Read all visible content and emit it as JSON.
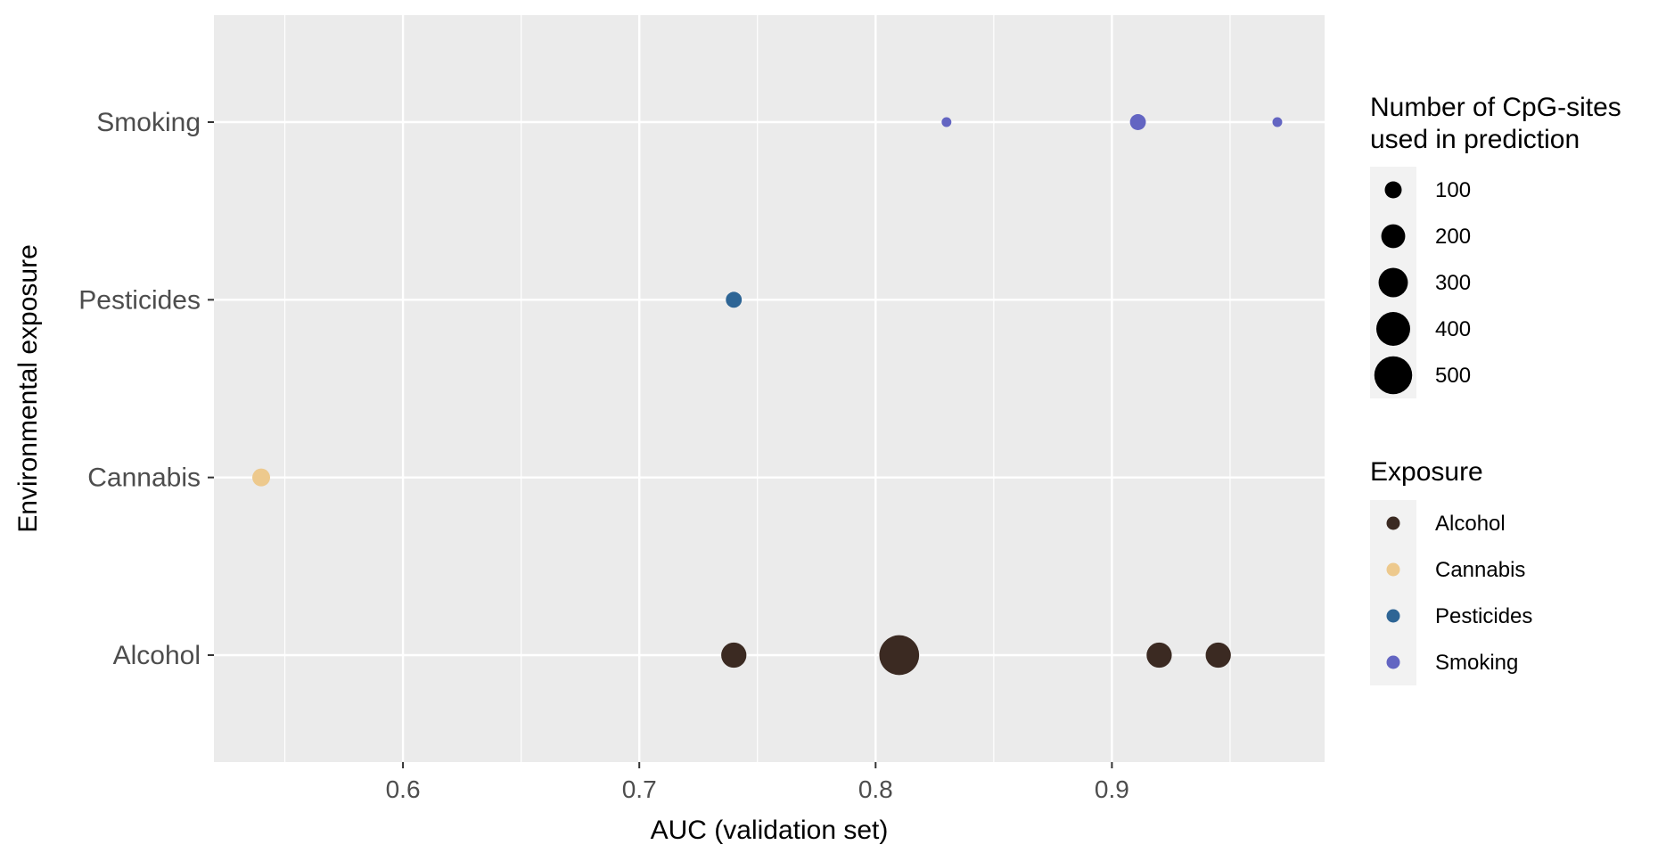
{
  "chart_data": {
    "type": "scatter",
    "title": "",
    "xlabel": "AUC (validation set)",
    "ylabel": "Environmental exposure",
    "xlim": [
      0.52,
      0.99
    ],
    "x_ticks": [
      0.6,
      0.7,
      0.8,
      0.9
    ],
    "x_tick_labels": [
      "0.6",
      "0.7",
      "0.8",
      "0.9"
    ],
    "categories": [
      "Alcohol",
      "Cannabis",
      "Pesticides",
      "Smoking"
    ],
    "grid": true,
    "panel_background": "#EBEBEB",
    "series": [
      {
        "name": "Alcohol",
        "color": "#3B2A22",
        "points": [
          {
            "x": 0.74,
            "size": 200
          },
          {
            "x": 0.81,
            "size": 500
          },
          {
            "x": 0.92,
            "size": 200
          },
          {
            "x": 0.945,
            "size": 200
          }
        ]
      },
      {
        "name": "Cannabis",
        "color": "#EDC98D",
        "points": [
          {
            "x": 0.54,
            "size": 100
          }
        ]
      },
      {
        "name": "Pesticides",
        "color": "#2E6595",
        "points": [
          {
            "x": 0.74,
            "size": 80
          }
        ]
      },
      {
        "name": "Smoking",
        "color": "#6365C2",
        "points": [
          {
            "x": 0.83,
            "size": 30
          },
          {
            "x": 0.911,
            "size": 80
          },
          {
            "x": 0.97,
            "size": 30
          }
        ]
      }
    ],
    "size_legend": {
      "title_line1": "Number of CpG-sites",
      "title_line2": "used in prediction",
      "values": [
        100,
        200,
        300,
        400,
        500
      ],
      "labels": [
        "100",
        "200",
        "300",
        "400",
        "500"
      ]
    },
    "color_legend": {
      "title": "Exposure",
      "labels": [
        "Alcohol",
        "Cannabis",
        "Pesticides",
        "Smoking"
      ],
      "colors": [
        "#3B2A22",
        "#EDC98D",
        "#2E6595",
        "#6365C2"
      ]
    },
    "legend_position": "right"
  }
}
